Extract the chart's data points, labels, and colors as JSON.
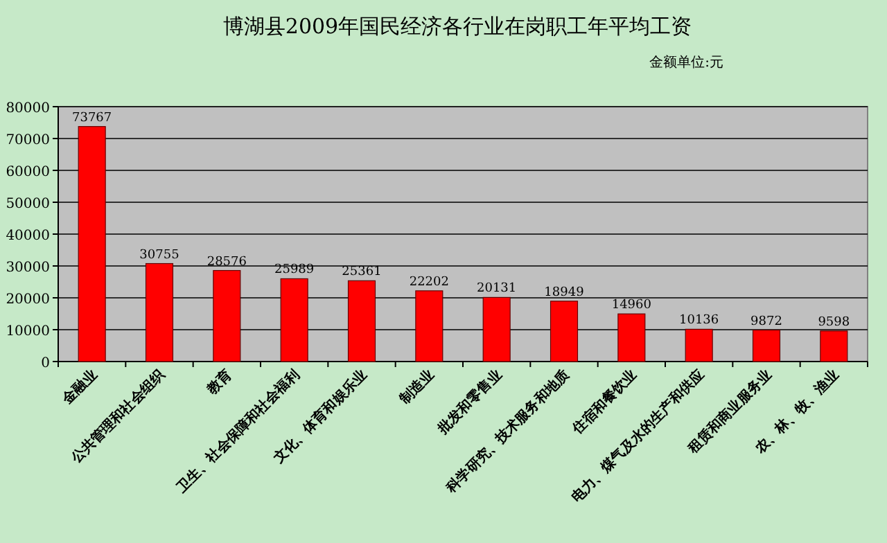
{
  "chart_data": {
    "type": "bar",
    "title": "博湖县2009年国民经济各行业在岗职工年平均工资",
    "annotations": [
      "金额单位:元"
    ],
    "categories": [
      "金融业",
      "公共管理和社会组织",
      "教育",
      "卫生、社会保障和社会福利",
      "文化、体育和娱乐业",
      "制造业",
      "批发和零售业",
      "科学研究、技术服务和地质",
      "住宿和餐饮业",
      "电力、煤气及水的生产和供应",
      "租赁和商业服务业",
      "农、林、牧、渔业"
    ],
    "series": [
      {
        "color": "#ff0000",
        "values": [
          73767,
          30755,
          28576,
          25989,
          25361,
          22202,
          20131,
          18949,
          14960,
          10136,
          9872,
          9598
        ]
      }
    ],
    "ylim": [
      0,
      80000
    ],
    "yticks": [
      0,
      10000,
      20000,
      30000,
      40000,
      50000,
      60000,
      70000,
      80000
    ],
    "grid": "y",
    "data_labels": true
  }
}
